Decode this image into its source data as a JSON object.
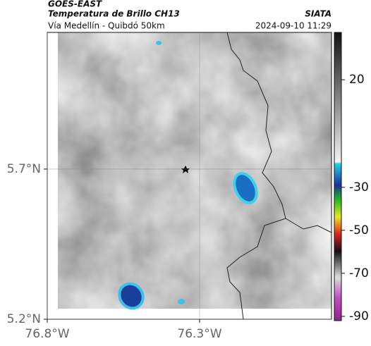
{
  "header": {
    "product": "GOES-EAST",
    "title": "Temperatura de Brillo CH13",
    "org": "SIATA",
    "subtitle": "Vía Medellín - Quibdó 50km",
    "timestamp": "2024-09-10 11:29"
  },
  "map": {
    "lon_range": [
      -76.8,
      -75.867
    ],
    "lat_range": [
      5.2,
      6.155
    ],
    "lat_ticks": [
      {
        "value": 5.7,
        "label": "5.7°N"
      },
      {
        "value": 5.2,
        "label": "5.2°N"
      }
    ],
    "lon_ticks": [
      {
        "value": -76.8,
        "label": "76.8°W"
      },
      {
        "value": -76.3,
        "label": "76.3°W"
      }
    ],
    "grid": true
  },
  "colorbar": {
    "range": [
      42,
      -92
    ],
    "ticks": [
      20,
      -30,
      -50,
      -70,
      -90
    ]
  }
}
